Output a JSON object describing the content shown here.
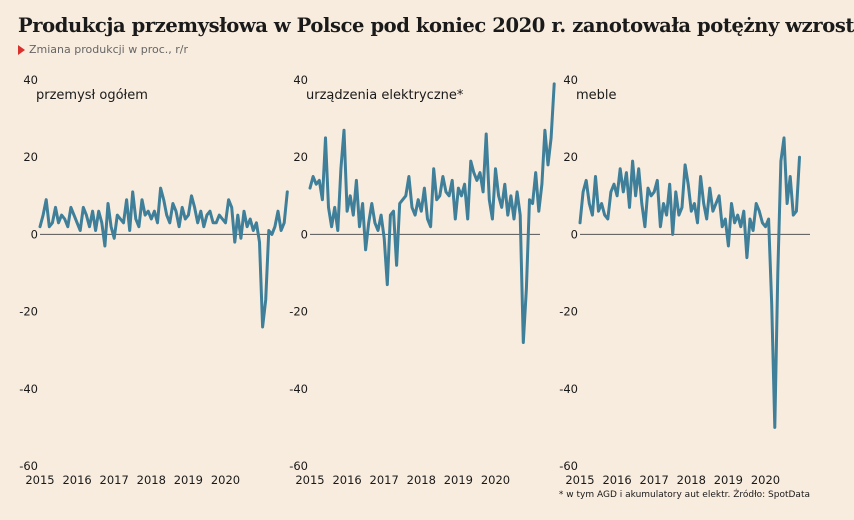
{
  "header": {
    "title": "Produkcja przemysłowa w Polsce pod koniec 2020 r. zanotowała potężny wzrost",
    "subtitle": "Zmiana produkcji w proc., r/r"
  },
  "footer": {
    "source": "* w tym AGD i akumulatory aut elektr. Źródło: SpotData"
  },
  "colors": {
    "line": "#3f7f99",
    "background": "#f8ecde",
    "accent": "#d9302c"
  },
  "chart_data": [
    {
      "type": "line",
      "title": "przemysł ogółem",
      "ylim": [
        -60,
        40
      ],
      "yticks": [
        "40",
        "20",
        "0",
        "-20",
        "-40",
        "-60"
      ],
      "xticks": [
        "2015",
        "2016",
        "2017",
        "2018",
        "2019",
        "2020"
      ],
      "x_start": "2015-01",
      "values": [
        2,
        5,
        9,
        2,
        3,
        7,
        3,
        5,
        4,
        2,
        7,
        5,
        3,
        1,
        7,
        5,
        2,
        6,
        1,
        6,
        3,
        -3,
        8,
        2,
        -1,
        5,
        4,
        3,
        9,
        1,
        11,
        4,
        2,
        9,
        5,
        6,
        4,
        6,
        3,
        12,
        9,
        5,
        3,
        8,
        6,
        2,
        7,
        4,
        5,
        10,
        7,
        3,
        6,
        2,
        5,
        6,
        3,
        3,
        5,
        4,
        3,
        9,
        7,
        -2,
        5,
        -1,
        6,
        2,
        4,
        1,
        3,
        -2,
        -24,
        -17,
        1,
        0,
        2,
        6,
        1,
        3,
        11
      ]
    },
    {
      "type": "line",
      "title": "urządzenia elektryczne*",
      "ylim": [
        -60,
        40
      ],
      "yticks": [
        "40",
        "20",
        "0",
        "-20",
        "-40",
        "-60"
      ],
      "xticks": [
        "2015",
        "2016",
        "2017",
        "2018",
        "2019",
        "2020"
      ],
      "x_start": "2015-01",
      "values": [
        12,
        15,
        13,
        14,
        9,
        25,
        7,
        2,
        7,
        1,
        17,
        27,
        6,
        10,
        5,
        14,
        2,
        8,
        -4,
        3,
        8,
        3,
        1,
        5,
        -1,
        -13,
        5,
        6,
        -8,
        8,
        9,
        10,
        15,
        7,
        5,
        9,
        6,
        12,
        4,
        2,
        17,
        9,
        10,
        15,
        11,
        10,
        14,
        4,
        12,
        10,
        13,
        4,
        19,
        16,
        14,
        16,
        11,
        26,
        9,
        4,
        17,
        10,
        7,
        13,
        5,
        10,
        4,
        11,
        5,
        -28,
        -14,
        9,
        8,
        16,
        6,
        13,
        27,
        18,
        25,
        39
      ]
    },
    {
      "type": "line",
      "title": "meble",
      "ylim": [
        -60,
        40
      ],
      "yticks": [
        "40",
        "20",
        "0",
        "-20",
        "-40",
        "-60"
      ],
      "xticks": [
        "2015",
        "2016",
        "2017",
        "2018",
        "2019",
        "2020"
      ],
      "x_start": "2015-01",
      "values": [
        3,
        11,
        14,
        8,
        5,
        15,
        6,
        8,
        5,
        4,
        11,
        13,
        10,
        17,
        11,
        16,
        7,
        19,
        10,
        17,
        8,
        2,
        12,
        10,
        11,
        14,
        2,
        8,
        5,
        13,
        0,
        11,
        5,
        7,
        18,
        13,
        6,
        8,
        3,
        15,
        8,
        4,
        12,
        6,
        8,
        10,
        2,
        4,
        -3,
        8,
        3,
        5,
        2,
        6,
        -6,
        4,
        1,
        8,
        6,
        3,
        2,
        4,
        -18,
        -50,
        -10,
        19,
        25,
        8,
        15,
        5,
        6,
        20
      ]
    }
  ]
}
